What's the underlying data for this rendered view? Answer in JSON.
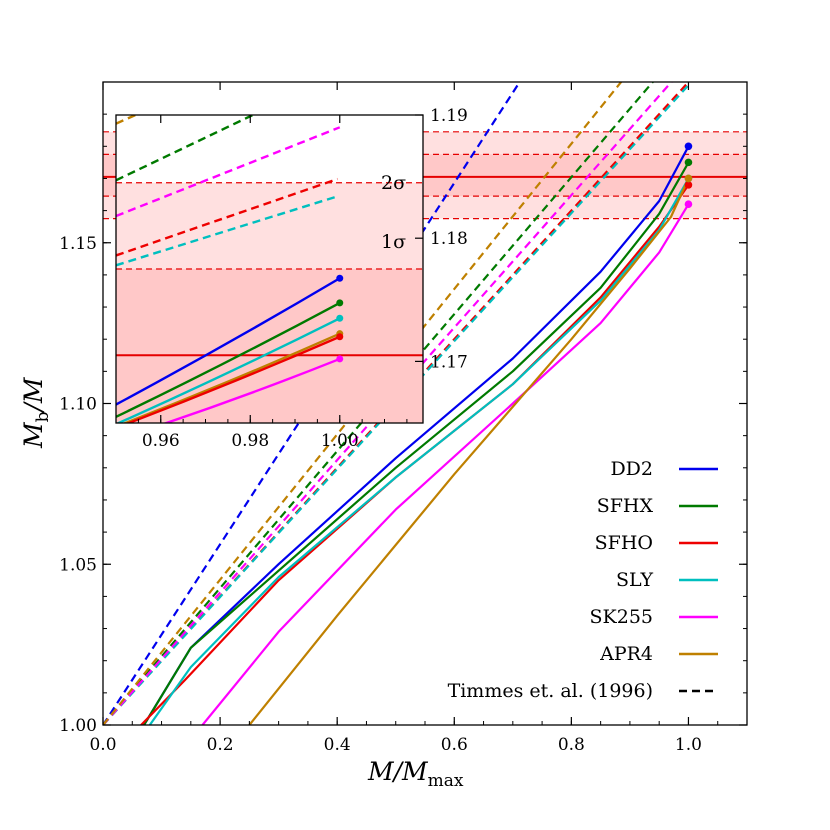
{
  "chart_data": {
    "type": "line",
    "xlabel": "M/M_max",
    "ylabel": "M_b/M",
    "xlabel_main": "M/M",
    "xlabel_sub": "max",
    "ylabel_main": "M",
    "ylabel_sub": "b",
    "ylabel_tail": "/M",
    "xlim": [
      0.0,
      1.1
    ],
    "ylim": [
      1.0,
      1.2
    ],
    "xticks": [
      "0.0",
      "0.2",
      "0.4",
      "0.6",
      "0.8",
      "1.0"
    ],
    "yticks": [
      "1.00",
      "1.05",
      "1.10",
      "1.15"
    ],
    "colors": {
      "DD2": "#0000ee",
      "SFHX": "#007a00",
      "SFHO": "#ee0000",
      "SLY": "#00bfbf",
      "SK255": "#ff00ff",
      "APR4": "#bf8000",
      "Timmes": "#000000",
      "band": "#e60000"
    },
    "band": {
      "center": 1.1705,
      "one_sigma": [
        1.1645,
        1.1775
      ],
      "two_sigma": [
        1.1575,
        1.1845
      ],
      "one_sigma_label": "1σ",
      "two_sigma_label": "2σ"
    },
    "series": [
      {
        "name": "DD2",
        "x": [
          0.07,
          0.15,
          0.3,
          0.5,
          0.7,
          0.85,
          0.95,
          1.0
        ],
        "y": [
          1.0,
          1.024,
          1.05,
          1.083,
          1.114,
          1.141,
          1.163,
          1.18
        ],
        "dashed": {
          "slope": 0.281
        }
      },
      {
        "name": "SFHX",
        "x": [
          0.07,
          0.15,
          0.3,
          0.5,
          0.7,
          0.85,
          0.95,
          1.0
        ],
        "y": [
          1.0,
          1.024,
          1.048,
          1.08,
          1.11,
          1.136,
          1.159,
          1.175
        ],
        "dashed": {
          "slope": 0.213
        }
      },
      {
        "name": "SFHO",
        "x": [
          0.065,
          0.14,
          0.3,
          0.5,
          0.7,
          0.85,
          0.95,
          1.0
        ],
        "y": [
          1.0,
          1.014,
          1.045,
          1.077,
          1.106,
          1.133,
          1.155,
          1.168
        ],
        "dashed": {
          "slope": 0.2
        }
      },
      {
        "name": "SLY",
        "x": [
          0.08,
          0.15,
          0.3,
          0.5,
          0.7,
          0.85,
          0.95,
          1.0
        ],
        "y": [
          1.0,
          1.018,
          1.046,
          1.077,
          1.106,
          1.132,
          1.154,
          1.17
        ],
        "dashed": {
          "slope": 0.199
        }
      },
      {
        "name": "SK255",
        "x": [
          0.17,
          0.3,
          0.5,
          0.7,
          0.85,
          0.95,
          1.0
        ],
        "y": [
          1.0,
          1.029,
          1.067,
          1.1,
          1.125,
          1.147,
          1.162
        ],
        "dashed": {
          "slope": 0.206
        }
      },
      {
        "name": "APR4",
        "x": [
          0.25,
          0.4,
          0.6,
          0.8,
          0.9,
          0.97,
          1.0
        ],
        "y": [
          1.0,
          1.034,
          1.078,
          1.12,
          1.142,
          1.158,
          1.17
        ],
        "dashed": {
          "slope": 0.226
        }
      }
    ],
    "legend": [
      "DD2",
      "SFHX",
      "SFHO",
      "SLY",
      "SK255",
      "APR4",
      "Timmes et. al. (1996)"
    ],
    "legend_position": "bottom-right",
    "inset": {
      "xlim": [
        0.95,
        1.0186
      ],
      "ylim": [
        1.165,
        1.19
      ],
      "xticks": [
        "0.96",
        "0.98",
        "1.00"
      ],
      "yticks": [
        "1.17",
        "1.18",
        "1.19"
      ],
      "curves": [
        {
          "name": "DD2",
          "x": [
            0.95,
            1.0
          ],
          "y": [
            1.1665,
            1.17675
          ]
        },
        {
          "name": "SFHX",
          "x": [
            0.95,
            1.0
          ],
          "y": [
            1.1655,
            1.17475
          ]
        },
        {
          "name": "SLY",
          "x": [
            0.95,
            1.0
          ],
          "y": [
            1.1649,
            1.1735
          ]
        },
        {
          "name": "APR4",
          "x": [
            0.95,
            1.0
          ],
          "y": [
            1.1647,
            1.17225
          ]
        },
        {
          "name": "SFHO",
          "x": [
            0.95,
            1.0
          ],
          "y": [
            1.1646,
            1.172
          ]
        },
        {
          "name": "SK255",
          "x": [
            0.958,
            1.0
          ],
          "y": [
            1.1646,
            1.1702
          ]
        }
      ],
      "dashed": [
        {
          "name": "SK255",
          "x": [
            0.95,
            1.0
          ],
          "y": [
            1.1818,
            1.189
          ]
        },
        {
          "name": "SFHO",
          "x": [
            0.95,
            0.9995
          ],
          "y": [
            1.1786,
            1.1848
          ]
        },
        {
          "name": "SLY",
          "x": [
            0.95,
            0.9995
          ],
          "y": [
            1.1778,
            1.1834
          ]
        },
        {
          "name": "SFHX",
          "x": [
            0.95,
            0.9875
          ],
          "y": [
            1.1847,
            1.1912
          ]
        },
        {
          "name": "APR4",
          "x": [
            0.95,
            0.9625
          ],
          "y": [
            1.1893,
            1.1913
          ]
        }
      ]
    }
  }
}
